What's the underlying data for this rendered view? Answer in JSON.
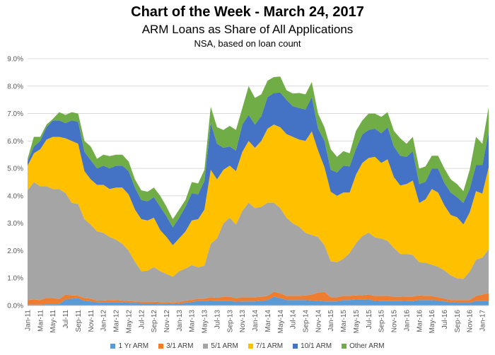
{
  "chart_data": {
    "type": "area",
    "stacked": true,
    "title": "Chart of the Week - March 24, 2017",
    "subtitle": "ARM Loans as Share of All Applications",
    "note": "NSA, based on loan count",
    "xlabel": "",
    "ylabel": "",
    "x_start": "Jan-11",
    "x_end": "Feb-17",
    "frequency": "monthly",
    "x_tick_labels": [
      "Jan-11",
      "Mar-11",
      "May-11",
      "Jul-11",
      "Sep-11",
      "Nov-11",
      "Jan-12",
      "Mar-12",
      "May-12",
      "Jul-12",
      "Sep-12",
      "Nov-12",
      "Jan-13",
      "Mar-13",
      "May-13",
      "Jul-13",
      "Sep-13",
      "Nov-13",
      "Jan-14",
      "Mar-14",
      "May-14",
      "Jul-14",
      "Sep-14",
      "Nov-14",
      "Jan-15",
      "Mar-15",
      "May-15",
      "Jul-15",
      "Sep-15",
      "Nov-15",
      "Jan-16",
      "Mar-16",
      "May-16",
      "Jul-16",
      "Sep-16",
      "Nov-16",
      "Jan-17"
    ],
    "y_tick_labels": [
      "0.0%",
      "1.0%",
      "2.0%",
      "3.0%",
      "4.0%",
      "5.0%",
      "6.0%",
      "7.0%",
      "8.0%",
      "9.0%"
    ],
    "ylim": [
      0,
      9
    ],
    "grid": true,
    "legend_position": "bottom",
    "series": [
      {
        "name": "1 Yr ARM",
        "color": "#5B9BD5",
        "values": [
          0.03,
          0.03,
          0.03,
          0.05,
          0.05,
          0.05,
          0.22,
          0.25,
          0.27,
          0.17,
          0.15,
          0.12,
          0.12,
          0.12,
          0.12,
          0.12,
          0.1,
          0.1,
          0.08,
          0.08,
          0.08,
          0.07,
          0.07,
          0.06,
          0.07,
          0.1,
          0.13,
          0.17,
          0.17,
          0.18,
          0.17,
          0.17,
          0.17,
          0.14,
          0.15,
          0.15,
          0.15,
          0.17,
          0.2,
          0.32,
          0.27,
          0.2,
          0.2,
          0.2,
          0.2,
          0.18,
          0.17,
          0.15,
          0.15,
          0.15,
          0.2,
          0.2,
          0.22,
          0.23,
          0.22,
          0.17,
          0.16,
          0.16,
          0.16,
          0.16,
          0.17,
          0.17,
          0.2,
          0.2,
          0.2,
          0.18,
          0.15,
          0.12,
          0.1,
          0.1,
          0.1,
          0.17,
          0.17,
          0.17
        ]
      },
      {
        "name": "3/1 ARM",
        "color": "#ED7D31",
        "values": [
          0.17,
          0.19,
          0.17,
          0.23,
          0.22,
          0.19,
          0.18,
          0.12,
          0.09,
          0.1,
          0.1,
          0.06,
          0.06,
          0.08,
          0.08,
          0.06,
          0.06,
          0.05,
          0.06,
          0.06,
          0.06,
          0.05,
          0.05,
          0.04,
          0.05,
          0.08,
          0.07,
          0.08,
          0.08,
          0.12,
          0.11,
          0.15,
          0.15,
          0.13,
          0.15,
          0.15,
          0.15,
          0.15,
          0.15,
          0.18,
          0.18,
          0.15,
          0.15,
          0.15,
          0.17,
          0.22,
          0.3,
          0.35,
          0.15,
          0.15,
          0.15,
          0.15,
          0.15,
          0.15,
          0.18,
          0.18,
          0.19,
          0.19,
          0.16,
          0.16,
          0.16,
          0.16,
          0.17,
          0.15,
          0.15,
          0.12,
          0.1,
          0.08,
          0.1,
          0.1,
          0.1,
          0.18,
          0.23,
          0.28
        ]
      },
      {
        "name": "5/1 ARM",
        "color": "#A5A5A5",
        "values": [
          4.0,
          4.28,
          4.15,
          4.07,
          3.98,
          4.01,
          3.7,
          3.38,
          3.34,
          2.88,
          2.7,
          2.52,
          2.47,
          2.3,
          2.2,
          2.07,
          1.84,
          1.45,
          1.11,
          1.13,
          1.26,
          1.13,
          1.03,
          0.95,
          1.13,
          1.17,
          1.27,
          1.15,
          1.2,
          1.95,
          2.17,
          2.68,
          2.88,
          2.68,
          3.15,
          3.45,
          3.25,
          3.28,
          3.4,
          3.25,
          3.1,
          2.85,
          2.65,
          2.52,
          2.28,
          2.17,
          2.03,
          1.7,
          1.32,
          1.28,
          1.35,
          1.57,
          1.9,
          2.15,
          2.26,
          2.13,
          2.09,
          2.01,
          1.78,
          1.56,
          1.55,
          1.51,
          1.21,
          1.21,
          1.14,
          1.11,
          1.03,
          0.9,
          0.79,
          0.77,
          1.03,
          1.32,
          1.35,
          1.6
        ]
      },
      {
        "name": "7/1 ARM",
        "color": "#FFC000",
        "values": [
          0.9,
          1.05,
          1.35,
          1.7,
          1.9,
          1.9,
          2.0,
          2.25,
          2.2,
          1.75,
          1.65,
          1.7,
          1.75,
          1.75,
          1.9,
          2.05,
          2.05,
          1.9,
          1.9,
          1.83,
          1.8,
          1.5,
          1.35,
          1.15,
          1.2,
          1.35,
          1.63,
          1.75,
          2.05,
          2.7,
          2.15,
          1.95,
          1.9,
          1.95,
          2.15,
          2.25,
          2.2,
          2.4,
          2.7,
          2.85,
          2.95,
          3.05,
          3.15,
          3.18,
          3.35,
          3.78,
          3.15,
          2.85,
          2.53,
          2.42,
          2.42,
          2.2,
          2.5,
          2.67,
          2.72,
          2.94,
          2.76,
          2.97,
          2.58,
          2.5,
          2.55,
          2.72,
          2.16,
          2.31,
          2.76,
          2.71,
          2.37,
          2.2,
          2.23,
          1.99,
          2.16,
          2.5,
          2.33,
          2.98
        ]
      },
      {
        "name": "10/1 ARM",
        "color": "#4472C4",
        "values": [
          0.15,
          0.25,
          0.3,
          0.45,
          0.6,
          0.6,
          0.55,
          0.75,
          0.8,
          0.7,
          0.7,
          0.6,
          0.7,
          0.75,
          0.8,
          0.8,
          0.85,
          0.8,
          0.7,
          0.7,
          0.75,
          0.85,
          0.75,
          0.65,
          0.75,
          0.9,
          1.0,
          0.9,
          1.05,
          1.7,
          1.3,
          0.8,
          0.7,
          0.75,
          1.0,
          0.95,
          0.85,
          0.9,
          1.15,
          1.15,
          1.27,
          1.25,
          1.12,
          1.15,
          1.15,
          1.25,
          0.8,
          0.95,
          0.8,
          0.85,
          0.98,
          0.95,
          0.95,
          1.04,
          1.02,
          1.03,
          1.08,
          1.17,
          1.12,
          1.08,
          0.99,
          1.07,
          0.69,
          0.64,
          0.74,
          0.87,
          0.82,
          0.82,
          0.73,
          0.78,
          0.86,
          0.95,
          1.04,
          1.29
        ]
      },
      {
        "name": "Other ARM",
        "color": "#70AD47",
        "values": [
          0.1,
          0.35,
          0.15,
          0.1,
          0.05,
          0.3,
          0.3,
          0.3,
          0.3,
          0.4,
          0.5,
          0.35,
          0.4,
          0.45,
          0.4,
          0.4,
          0.35,
          0.3,
          0.35,
          0.35,
          0.35,
          0.4,
          0.35,
          0.3,
          0.3,
          0.25,
          0.4,
          0.4,
          0.4,
          0.6,
          0.6,
          0.65,
          0.75,
          0.75,
          0.6,
          1.05,
          0.97,
          0.8,
          0.6,
          0.58,
          0.58,
          0.35,
          0.46,
          0.55,
          0.55,
          0.55,
          0.55,
          0.5,
          0.75,
          0.57,
          0.53,
          0.48,
          0.65,
          0.51,
          0.6,
          0.55,
          0.6,
          0.55,
          0.57,
          0.64,
          0.48,
          0.52,
          0.56,
          0.56,
          0.47,
          0.47,
          0.52,
          0.48,
          0.48,
          0.43,
          0.69,
          1.03,
          0.78,
          0.91
        ]
      }
    ]
  }
}
